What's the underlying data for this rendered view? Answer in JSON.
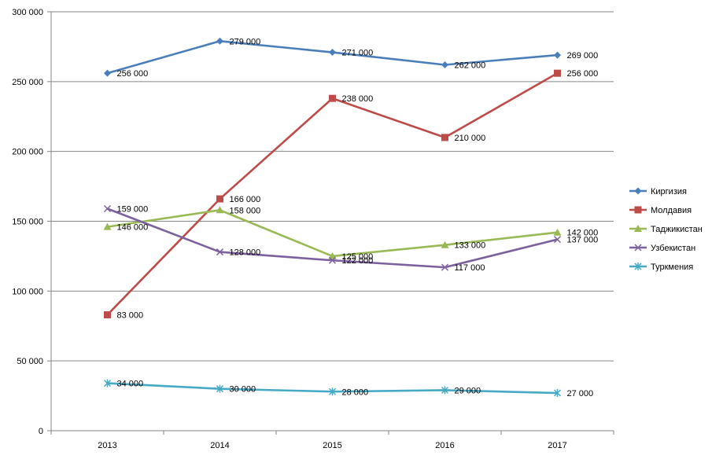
{
  "chart_data": {
    "type": "line",
    "title": "",
    "xlabel": "",
    "ylabel": "",
    "categories": [
      "2013",
      "2014",
      "2015",
      "2016",
      "2017"
    ],
    "ylim": [
      0,
      300000
    ],
    "yticks": [
      0,
      50000,
      100000,
      150000,
      200000,
      250000,
      300000
    ],
    "ytick_labels": [
      "0",
      "50 000",
      "100 000",
      "150 000",
      "200 000",
      "250 000",
      "300 000"
    ],
    "grid": true,
    "legend_position": "right",
    "series": [
      {
        "name": "Киргизия",
        "color": "#4A7EBB",
        "marker": "diamond",
        "values": [
          256000,
          279000,
          271000,
          262000,
          269000
        ],
        "labels": [
          "256 000",
          "279 000",
          "271 000",
          "262 000",
          "269 000"
        ]
      },
      {
        "name": "Молдавия",
        "color": "#BE4B48",
        "marker": "square",
        "values": [
          83000,
          166000,
          238000,
          210000,
          256000
        ],
        "labels": [
          "83 000",
          "166 000",
          "238 000",
          "210 000",
          "256 000"
        ]
      },
      {
        "name": "Таджикистан",
        "color": "#98B954",
        "marker": "triangle",
        "values": [
          146000,
          158000,
          125000,
          133000,
          142000
        ],
        "labels": [
          "146 000",
          "158 000",
          "125 000",
          "133 000",
          "142 000"
        ]
      },
      {
        "name": "Узбекистан",
        "color": "#7D60A0",
        "marker": "x",
        "values": [
          159000,
          128000,
          122000,
          117000,
          137000
        ],
        "labels": [
          "159 000",
          "128 000",
          "122 000",
          "117 000",
          "137 000"
        ]
      },
      {
        "name": "Туркмения",
        "color": "#46AAC5",
        "marker": "star",
        "values": [
          34000,
          30000,
          28000,
          29000,
          27000
        ],
        "labels": [
          "34 000",
          "30 000",
          "28 000",
          "29 000",
          "27 000"
        ]
      }
    ]
  }
}
